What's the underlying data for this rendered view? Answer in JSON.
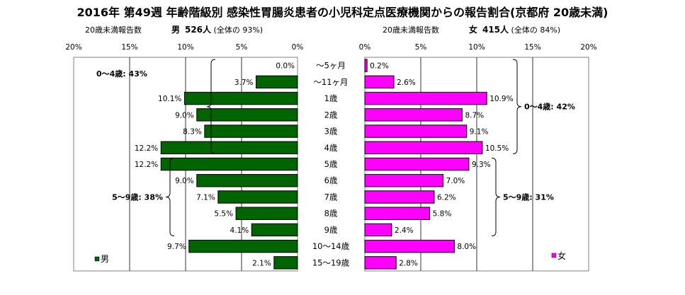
{
  "chart_data": {
    "type": "bar",
    "title": "2016年 第49週 年齢階級別 感染性胃腸炎患者の小児科定点医療機関からの報告割合(京都府 20歳未満)",
    "categories": [
      "〜5ヶ月",
      "〜11ヶ月",
      "1歳",
      "2歳",
      "3歳",
      "4歳",
      "5歳",
      "6歳",
      "7歳",
      "8歳",
      "9歳",
      "10〜14歳",
      "15〜19歳"
    ],
    "x_ticks": [
      "0%",
      "5%",
      "10%",
      "15%",
      "20%"
    ],
    "xlim": [
      0,
      20
    ],
    "grid": true,
    "series": [
      {
        "name": "男",
        "color": "#006400",
        "header_left": "20歳未満報告数",
        "header_sex": "男",
        "header_count": "526人",
        "header_share": "(全体の 93%)",
        "values": [
          0.0,
          3.7,
          10.1,
          9.0,
          8.3,
          12.2,
          12.2,
          9.0,
          7.1,
          5.5,
          4.1,
          9.7,
          2.1
        ],
        "labels": [
          "0.0%",
          "3.7%",
          "10.1%",
          "9.0%",
          "8.3%",
          "12.2%",
          "12.2%",
          "9.0%",
          "7.1%",
          "5.5%",
          "4.1%",
          "9.7%",
          "2.1%"
        ],
        "brackets": [
          {
            "label": "0〜4歳: 43%",
            "from": 0,
            "to": 5
          },
          {
            "label": "5〜9歳: 38%",
            "from": 6,
            "to": 10
          }
        ]
      },
      {
        "name": "女",
        "color": "#FF00FF",
        "header_left": "20歳未満報告数",
        "header_sex": "女",
        "header_count": "415人",
        "header_share": "(全体の 84%)",
        "values": [
          0.2,
          2.6,
          10.9,
          8.7,
          9.1,
          10.5,
          9.3,
          7.0,
          6.2,
          5.8,
          2.4,
          8.0,
          2.8
        ],
        "labels": [
          "0.2%",
          "2.6%",
          "10.9%",
          "8.7%",
          "9.1%",
          "10.5%",
          "9.3%",
          "7.0%",
          "6.2%",
          "5.8%",
          "2.4%",
          "8.0%",
          "2.8%"
        ],
        "brackets": [
          {
            "label": "0〜4歳: 42%",
            "from": 0,
            "to": 5
          },
          {
            "label": "5〜9歳: 31%",
            "from": 6,
            "to": 10
          }
        ]
      }
    ]
  }
}
